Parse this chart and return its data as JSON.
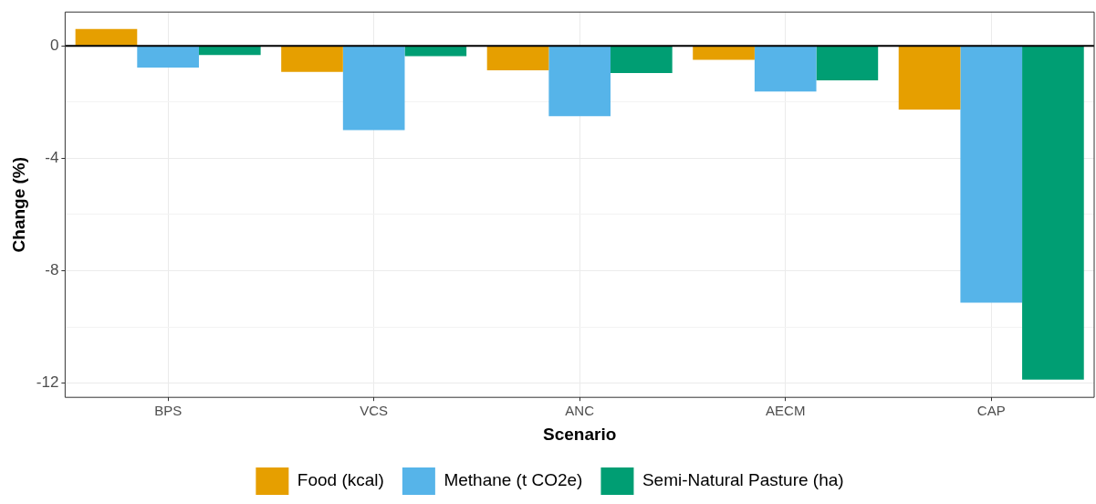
{
  "chart_data": {
    "type": "bar",
    "xlabel": "Scenario",
    "ylabel": "Change (%)",
    "categories": [
      "BPS",
      "VCS",
      "ANC",
      "AECM",
      "CAP"
    ],
    "series": [
      {
        "name": "Food (kcal)",
        "color": "#e69f00",
        "values": [
          0.6,
          -0.93,
          -0.87,
          -0.5,
          -2.27
        ]
      },
      {
        "name": "Methane (t CO2e)",
        "color": "#56b4e9",
        "values": [
          -0.77,
          -3.0,
          -2.5,
          -1.63,
          -9.13
        ]
      },
      {
        "name": "Semi-Natural Pasture (ha)",
        "color": "#009e73",
        "values": [
          -0.33,
          -0.37,
          -0.97,
          -1.23,
          -11.87
        ]
      }
    ],
    "ylim": [
      -12.5,
      1.2
    ],
    "yticks": [
      {
        "value": -12,
        "label": "-12"
      },
      {
        "value": -10,
        "label": null
      },
      {
        "value": -8,
        "label": "-8"
      },
      {
        "value": -6,
        "label": null
      },
      {
        "value": -4,
        "label": "-4"
      },
      {
        "value": -2,
        "label": null
      },
      {
        "value": 0,
        "label": "0"
      }
    ],
    "ref_lines": [
      {
        "axis": "y",
        "value": 0,
        "color": "#000000"
      }
    ],
    "grid": true,
    "legend": "bottom"
  }
}
